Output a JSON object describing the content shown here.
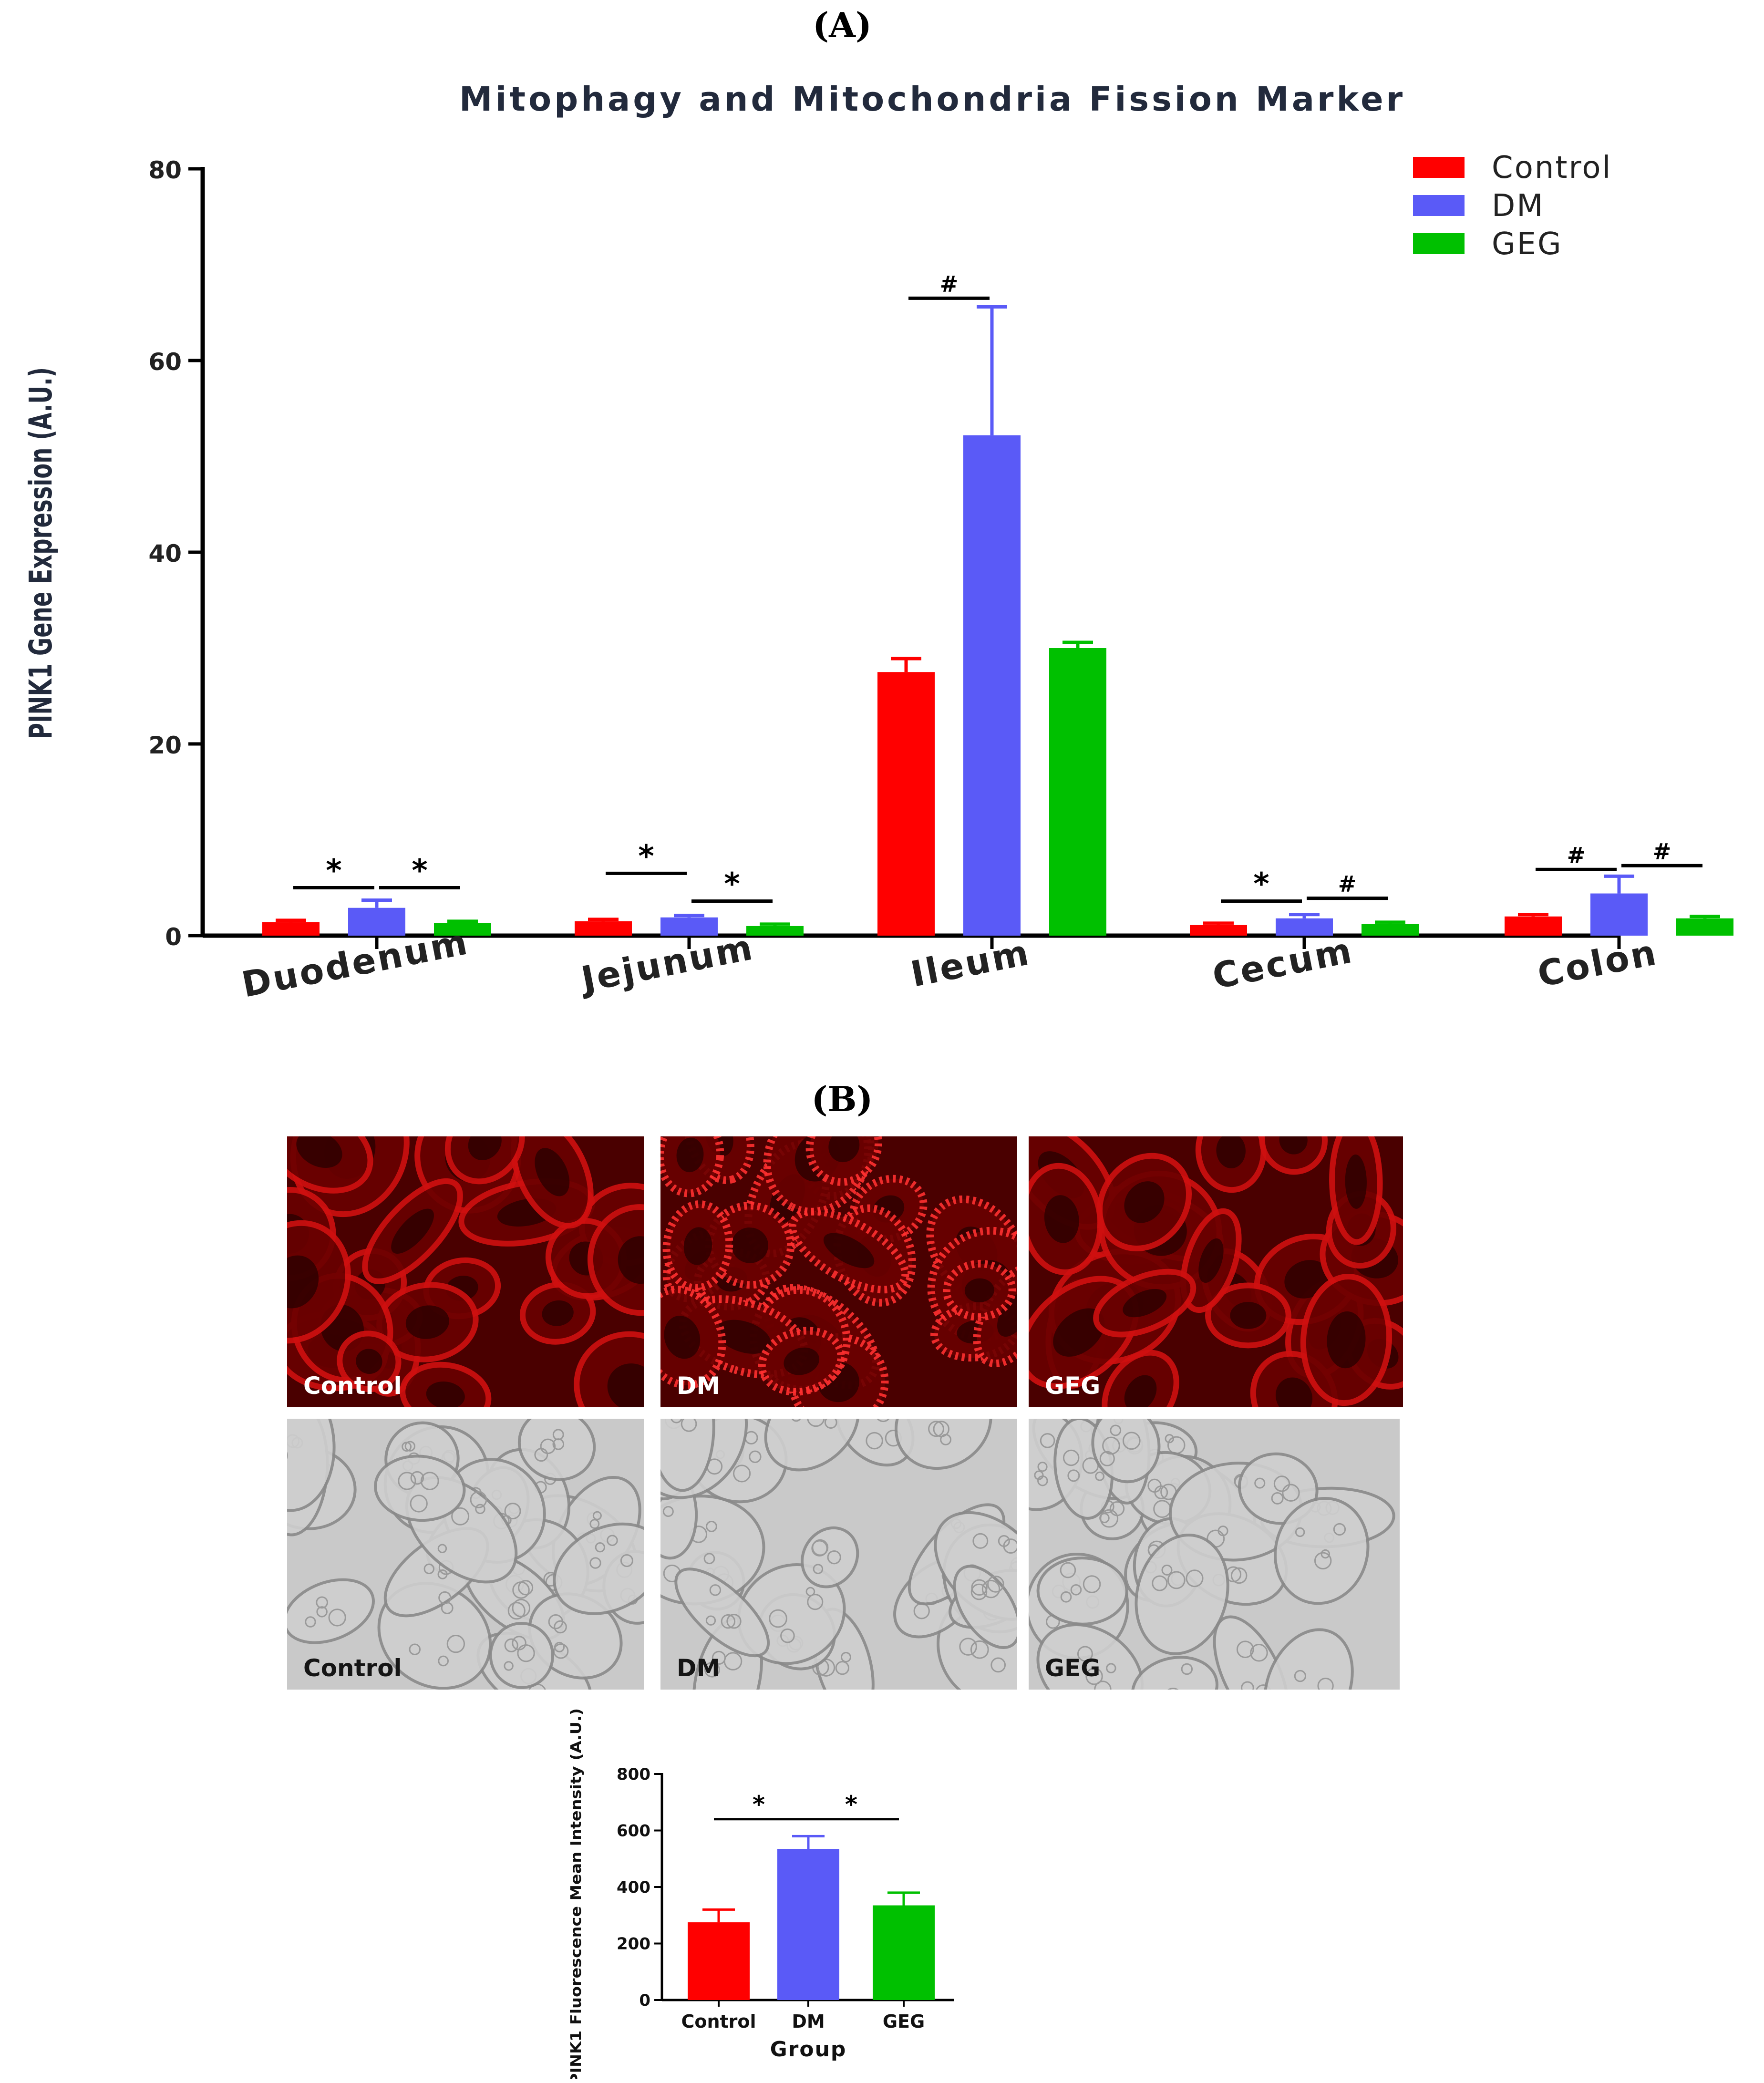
{
  "panel_a_label": "(A)",
  "panel_b_label": "(B)",
  "colors": {
    "control": "#ff0000",
    "dm": "#5a5af7",
    "geg": "#00c000",
    "title": "#222a3c"
  },
  "chart_data": [
    {
      "type": "bar",
      "title": "Mitophagy and Mitochondria Fission Marker",
      "xlabel": "",
      "ylabel": "PINK1 Gene Expression (A.U.)",
      "ylim": [
        0,
        80
      ],
      "yticks": [
        0,
        20,
        40,
        60,
        80
      ],
      "grid": false,
      "legend": "top-right",
      "categories": [
        "Duodenum",
        "Jejunum",
        "Ileum",
        "Cecum",
        "Colon"
      ],
      "series": [
        {
          "name": "Control",
          "color": "#ff0000",
          "values": [
            1.4,
            1.5,
            27.5,
            1.1,
            2.0
          ],
          "errors": [
            0.2,
            0.2,
            1.4,
            0.2,
            0.2
          ]
        },
        {
          "name": "DM",
          "color": "#5a5af7",
          "values": [
            2.9,
            1.9,
            52.2,
            1.8,
            4.4
          ],
          "errors": [
            0.8,
            0.2,
            13.4,
            0.4,
            1.8
          ]
        },
        {
          "name": "GEG",
          "color": "#00c000",
          "values": [
            1.3,
            1.0,
            30.0,
            1.2,
            1.8
          ],
          "errors": [
            0.2,
            0.2,
            0.6,
            0.2,
            0.2
          ]
        }
      ],
      "annotations": [
        {
          "label": "*",
          "category": 0,
          "from": 0,
          "to": 1,
          "y": 5.0
        },
        {
          "label": "*",
          "category": 0,
          "from": 1,
          "to": 2,
          "y": 5.0
        },
        {
          "label": "*",
          "category": 1,
          "from": 0,
          "to": 1,
          "y": 6.5
        },
        {
          "label": "*",
          "category": 1,
          "from": 1,
          "to": 2,
          "y": 3.6
        },
        {
          "label": "#",
          "category": 2,
          "from": 0,
          "to": 1,
          "y": 66.5
        },
        {
          "label": "*",
          "category": 3,
          "from": 0,
          "to": 1,
          "y": 3.6
        },
        {
          "label": "#",
          "category": 3,
          "from": 1,
          "to": 2,
          "y": 3.9
        },
        {
          "label": "#",
          "category": 4,
          "from": 0,
          "to": 1,
          "y": 6.9
        },
        {
          "label": "#",
          "category": 4,
          "from": 1,
          "to": 2,
          "y": 7.3
        }
      ]
    },
    {
      "type": "bar",
      "title": "",
      "xlabel": "Group",
      "ylabel": "PINK1 Fluorescence Mean Intensity (A.U.)",
      "ylim": [
        0,
        800
      ],
      "yticks": [
        0,
        200,
        400,
        600,
        800
      ],
      "grid": false,
      "categories": [
        "Control",
        "DM",
        "GEG"
      ],
      "colors": [
        "#ff0000",
        "#5a5af7",
        "#00c000"
      ],
      "values": [
        275,
        535,
        335
      ],
      "errors": [
        45,
        45,
        45
      ],
      "annotations": [
        {
          "label": "*",
          "from": 0,
          "to": 1,
          "y": 640
        },
        {
          "label": "*",
          "from": 1,
          "to": 2,
          "y": 640
        }
      ]
    }
  ],
  "micrographs": [
    {
      "label": "Control",
      "kind": "fluorescence"
    },
    {
      "label": "DM",
      "kind": "fluorescence"
    },
    {
      "label": "GEG",
      "kind": "fluorescence"
    },
    {
      "label": "Control",
      "kind": "brightfield"
    },
    {
      "label": "DM",
      "kind": "brightfield"
    },
    {
      "label": "GEG",
      "kind": "brightfield"
    }
  ]
}
